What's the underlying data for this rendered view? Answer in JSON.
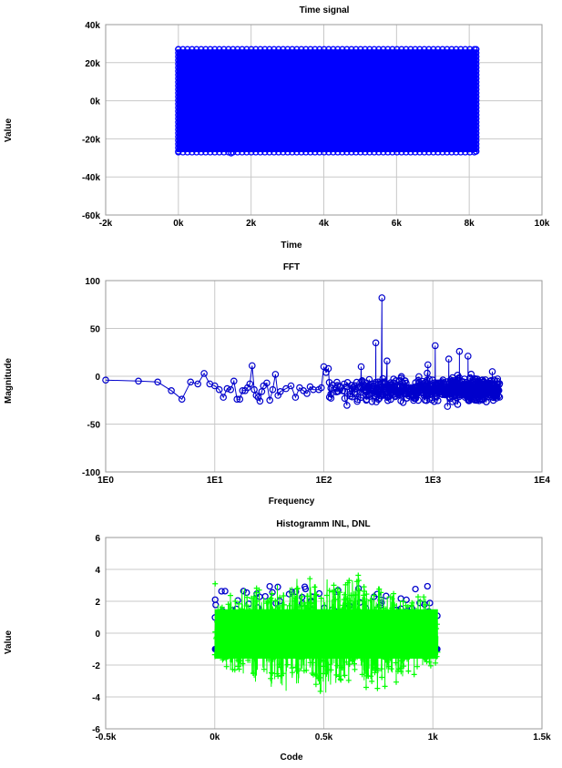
{
  "chart_data": [
    {
      "type": "scatter",
      "title": "Time signal",
      "xlabel": "Time",
      "ylabel": "Value",
      "xlim": [
        -2000,
        10000
      ],
      "ylim": [
        -60000,
        40000
      ],
      "x_tick_values": [
        -2000,
        0,
        2000,
        4000,
        6000,
        8000,
        10000
      ],
      "x_tick_labels": [
        "-2k",
        "0k",
        "2k",
        "4k",
        "6k",
        "8k",
        "10k"
      ],
      "y_tick_values": [
        -60000,
        -40000,
        -20000,
        0,
        20000,
        40000
      ],
      "y_tick_labels": [
        "-60k",
        "-40k",
        "-20k",
        "0k",
        "20k",
        "40k"
      ],
      "grid": true,
      "series": [
        {
          "color": "#0000ff",
          "marker": "circle",
          "x_range": [
            0,
            8191
          ],
          "y_envelope": [
            -27000,
            27000
          ]
        }
      ]
    },
    {
      "type": "line",
      "title": "FFT",
      "xlabel": "Frequency",
      "ylabel": "Magnitude",
      "x_scale": "log",
      "xlim": [
        1,
        10000
      ],
      "ylim": [
        -100,
        100
      ],
      "x_tick_values": [
        1,
        10,
        100,
        1000,
        10000
      ],
      "x_tick_labels": [
        "1E0",
        "1E1",
        "1E2",
        "1E3",
        "1E4"
      ],
      "y_tick_values": [
        -100,
        -50,
        0,
        50,
        100
      ],
      "y_tick_labels": [
        "-100",
        "-50",
        "0",
        "50",
        "100"
      ],
      "grid": true,
      "series": [
        {
          "color": "#0000cc",
          "marker": "circle",
          "x": [
            1,
            2,
            3,
            4,
            5,
            6,
            7,
            8,
            9,
            10,
            11,
            12,
            13,
            14,
            15,
            16,
            17,
            18,
            19,
            20,
            21,
            22,
            23,
            24,
            25,
            26,
            27,
            28,
            30,
            32,
            34,
            36,
            38,
            40,
            45,
            50,
            55,
            60,
            65,
            70,
            75,
            80,
            90,
            95,
            100,
            105,
            110
          ],
          "y": [
            -4,
            -5,
            -6,
            -15,
            -24,
            -6,
            -8,
            3,
            -8,
            -10,
            -14,
            -22,
            -13,
            -14,
            -5,
            -24,
            -24,
            -15,
            -15,
            -12,
            -8,
            11,
            -14,
            -20,
            -22,
            -26,
            -16,
            -10,
            -7,
            -25,
            -14,
            2,
            -20,
            -16,
            -13,
            -10,
            -22,
            -12,
            -15,
            -18,
            -11,
            -14,
            -14,
            -12,
            10,
            4,
            8
          ],
          "dense_region": {
            "x_range": [
              100,
              4096
            ],
            "y_range": [
              -42,
              18
            ],
            "peak": [
              341,
              82
            ],
            "outliers": [
              [
                220,
                10
              ],
              [
                300,
                35
              ],
              [
                380,
                16
              ],
              [
                1050,
                32
              ],
              [
                1750,
                26
              ],
              [
                2100,
                21
              ],
              [
                1400,
                18
              ],
              [
                900,
                12
              ]
            ]
          }
        }
      ]
    },
    {
      "type": "scatter",
      "title": "Histogramm INL, DNL",
      "xlabel": "Code",
      "ylabel": "Value",
      "xlim": [
        -500,
        1500
      ],
      "ylim": [
        -6,
        6
      ],
      "x_tick_values": [
        -500,
        0,
        500,
        1000,
        1500
      ],
      "x_tick_labels": [
        "-0.5k",
        "0k",
        "0.5k",
        "1k",
        "1.5k"
      ],
      "y_tick_values": [
        -6,
        -4,
        -2,
        0,
        2,
        4,
        6
      ],
      "y_tick_labels": [
        "-6",
        "-4",
        "-2",
        "0",
        "2",
        "4",
        "6"
      ],
      "grid": true,
      "series": [
        {
          "color": "#0000cc",
          "marker": "circle",
          "x_range": [
            0,
            1023
          ],
          "y_envelope": [
            -1,
            3
          ]
        },
        {
          "color": "#00ff00",
          "marker": "plus",
          "x_range": [
            0,
            1023
          ],
          "y_envelope": [
            -4,
            4
          ]
        }
      ]
    }
  ]
}
